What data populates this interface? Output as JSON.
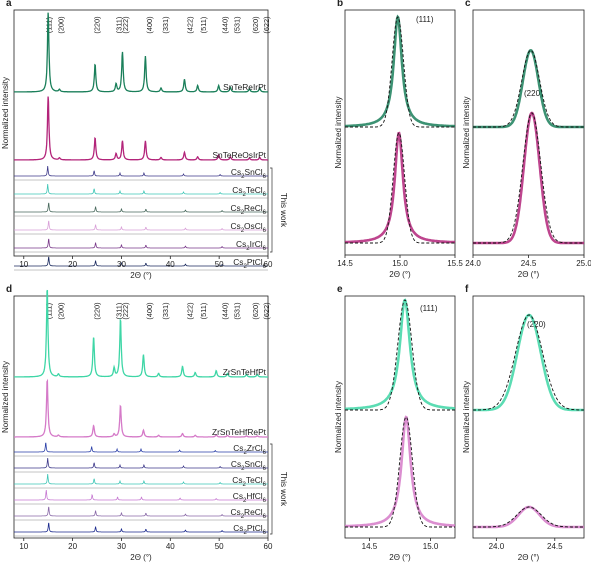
{
  "panels": {
    "a": "a",
    "b": "b",
    "c": "c",
    "d": "d",
    "e": "e",
    "f": "f"
  },
  "chart_data": [
    {
      "panel": "a",
      "type": "line",
      "xlabel": "2Θ (°)",
      "ylabel": "Normalized intensity",
      "xlim": [
        8,
        60
      ],
      "xticks": [
        "10",
        "20",
        "30",
        "40",
        "50",
        "60"
      ],
      "hkl": [
        {
          "label": "(111)",
          "x": 15.1
        },
        {
          "label": "(200)",
          "x": 17.5
        },
        {
          "label": "(220)",
          "x": 24.9
        },
        {
          "label": "(311)",
          "x": 29.4
        },
        {
          "label": "(222)",
          "x": 30.7
        },
        {
          "label": "(400)",
          "x": 35.6
        },
        {
          "label": "(331)",
          "x": 38.9
        },
        {
          "label": "(422)",
          "x": 43.9
        },
        {
          "label": "(511)",
          "x": 46.7
        },
        {
          "label": "(440)",
          "x": 51.1
        },
        {
          "label": "(531)",
          "x": 53.5
        },
        {
          "label": "(620)",
          "x": 57.3
        },
        {
          "label": "(622)",
          "x": 59.6
        }
      ],
      "series": [
        {
          "name": "SnTeReIrPt",
          "color": "#1a7f5a",
          "peaks": [
            [
              15.0,
              1.0
            ],
            [
              17.3,
              0.03
            ],
            [
              24.6,
              0.35
            ],
            [
              28.9,
              0.1
            ],
            [
              30.2,
              0.5
            ],
            [
              34.9,
              0.45
            ],
            [
              38.1,
              0.05
            ],
            [
              42.9,
              0.16
            ],
            [
              45.6,
              0.08
            ],
            [
              49.9,
              0.08
            ],
            [
              52.3,
              0.06
            ],
            [
              56.2,
              0.04
            ],
            [
              58.3,
              0.05
            ]
          ]
        },
        {
          "name": "SnTeReOsIrPt",
          "color": "#b3247a",
          "peaks": [
            [
              15.0,
              1.0
            ],
            [
              17.3,
              0.03
            ],
            [
              24.6,
              0.35
            ],
            [
              28.9,
              0.1
            ],
            [
              30.2,
              0.3
            ],
            [
              34.9,
              0.3
            ],
            [
              38.1,
              0.04
            ],
            [
              42.9,
              0.12
            ],
            [
              45.6,
              0.05
            ],
            [
              49.9,
              0.08
            ],
            [
              52.3,
              0.05
            ],
            [
              56.2,
              0.03
            ],
            [
              58.3,
              0.04
            ]
          ]
        },
        {
          "name": "Cs2SnCl6",
          "label": [
            "Cs",
            "2",
            "SnCl",
            "6"
          ],
          "color": "#3e3a8a",
          "peaks": [
            [
              14.9,
              1.0
            ],
            [
              24.4,
              0.55
            ],
            [
              29.7,
              0.3
            ],
            [
              34.6,
              0.3
            ],
            [
              42.7,
              0.2
            ],
            [
              50.2,
              0.15
            ]
          ]
        },
        {
          "name": "Cs2TeCl6",
          "label": [
            "Cs",
            "2",
            "TeCl",
            "6"
          ],
          "color": "#3ec6b6",
          "peaks": [
            [
              14.9,
              1.0
            ],
            [
              24.4,
              0.55
            ],
            [
              29.7,
              0.3
            ],
            [
              34.6,
              0.3
            ],
            [
              42.7,
              0.2
            ],
            [
              50.2,
              0.15
            ]
          ]
        },
        {
          "name": "Cs2ReCl6",
          "label": [
            "Cs",
            "2",
            "ReCl",
            "6"
          ],
          "color": "#4a6a5e",
          "peaks": [
            [
              15.1,
              1.0
            ],
            [
              24.7,
              0.55
            ],
            [
              30.0,
              0.3
            ],
            [
              35.0,
              0.3
            ],
            [
              43.1,
              0.2
            ],
            [
              50.6,
              0.15
            ]
          ]
        },
        {
          "name": "Cs2OsCl6",
          "label": [
            "Cs",
            "2",
            "OsCl",
            "6"
          ],
          "color": "#d9a0d8",
          "peaks": [
            [
              15.1,
              1.0
            ],
            [
              24.7,
              0.55
            ],
            [
              30.0,
              0.3
            ],
            [
              35.0,
              0.3
            ],
            [
              43.1,
              0.2
            ],
            [
              50.6,
              0.15
            ]
          ]
        },
        {
          "name": "Cs2IrCl6",
          "label": [
            "Cs",
            "2",
            "IrCl",
            "6"
          ],
          "color": "#7a3a8a",
          "peaks": [
            [
              15.1,
              1.0
            ],
            [
              24.7,
              0.55
            ],
            [
              30.0,
              0.3
            ],
            [
              35.0,
              0.3
            ],
            [
              43.1,
              0.2
            ],
            [
              50.6,
              0.15
            ]
          ]
        },
        {
          "name": "Cs2PtCl6",
          "label": [
            "Cs",
            "2",
            "PtCl",
            "6"
          ],
          "color": "#1b2a5e",
          "peaks": [
            [
              15.1,
              1.0
            ],
            [
              24.7,
              0.55
            ],
            [
              30.0,
              0.3
            ],
            [
              35.0,
              0.3
            ],
            [
              43.1,
              0.2
            ],
            [
              50.6,
              0.15
            ]
          ]
        }
      ],
      "bracket_label": "This work"
    },
    {
      "panel": "b",
      "type": "line",
      "xlabel": "2Θ (°)",
      "ylabel": "Normalized intensity",
      "xlim": [
        14.5,
        15.5
      ],
      "xticks": [
        "14.5",
        "15.0",
        "15.5"
      ],
      "annotation": "(111)",
      "series": [
        {
          "name": "SnTeReIrPt",
          "color": "#1a7f5a",
          "center": 14.98,
          "width": 0.045
        },
        {
          "name": "SnTeReOsIrPt",
          "color": "#b3247a",
          "center": 14.99,
          "width": 0.045
        }
      ]
    },
    {
      "panel": "c",
      "type": "line",
      "xlim": [
        24.0,
        25.0
      ],
      "xticks": [
        "24.0",
        "24.5",
        "25.0"
      ],
      "xlabel": "2Θ (°)",
      "ylabel": "Normalized intensity",
      "annotation": "(220)",
      "series": [
        {
          "name": "SnTeReIrPt",
          "color": "#1a7f5a",
          "center": 24.52,
          "width": 0.07,
          "height": 0.3
        },
        {
          "name": "SnTeReOsIrPt",
          "color": "#b3247a",
          "center": 24.53,
          "width": 0.07,
          "height": 0.45
        }
      ]
    },
    {
      "panel": "d",
      "type": "line",
      "xlabel": "2Θ (°)",
      "ylabel": "Normalized intensity",
      "xlim": [
        8,
        60
      ],
      "xticks": [
        "10",
        "20",
        "30",
        "40",
        "50",
        "60"
      ],
      "hkl": [
        {
          "label": "(111)",
          "x": 15.1
        },
        {
          "label": "(200)",
          "x": 17.5
        },
        {
          "label": "(220)",
          "x": 24.9
        },
        {
          "label": "(311)",
          "x": 29.4
        },
        {
          "label": "(222)",
          "x": 30.7
        },
        {
          "label": "(400)",
          "x": 35.6
        },
        {
          "label": "(331)",
          "x": 38.9
        },
        {
          "label": "(422)",
          "x": 43.9
        },
        {
          "label": "(511)",
          "x": 46.7
        },
        {
          "label": "(440)",
          "x": 51.1
        },
        {
          "label": "(531)",
          "x": 53.5
        },
        {
          "label": "(620)",
          "x": 57.3
        },
        {
          "label": "(622)",
          "x": 59.6
        }
      ],
      "series": [
        {
          "name": "ZrSnTeHfPt",
          "color": "#3ed6a6",
          "peaks": [
            [
              14.8,
              1.0
            ],
            [
              17.1,
              0.03
            ],
            [
              24.3,
              0.45
            ],
            [
              28.5,
              0.1
            ],
            [
              29.8,
              0.65
            ],
            [
              34.5,
              0.25
            ],
            [
              37.6,
              0.04
            ],
            [
              42.5,
              0.12
            ],
            [
              45.1,
              0.05
            ],
            [
              49.4,
              0.07
            ],
            [
              51.7,
              0.04
            ],
            [
              55.6,
              0.03
            ],
            [
              57.8,
              0.03
            ]
          ]
        },
        {
          "name": "ZrSnTeHfRePt",
          "color": "#d57ac8",
          "peaks": [
            [
              14.8,
              1.0
            ],
            [
              17.1,
              0.03
            ],
            [
              24.3,
              0.2
            ],
            [
              28.5,
              0.05
            ],
            [
              29.8,
              0.55
            ],
            [
              34.5,
              0.12
            ],
            [
              37.6,
              0.03
            ],
            [
              42.5,
              0.06
            ],
            [
              45.1,
              0.03
            ],
            [
              49.4,
              0.04
            ],
            [
              51.7,
              0.03
            ],
            [
              55.6,
              0.02
            ],
            [
              57.8,
              0.02
            ]
          ]
        },
        {
          "name": "Cs2ZrCl6",
          "label": [
            "Cs",
            "2",
            "ZrCl",
            "6"
          ],
          "color": "#2a3fa8",
          "peaks": [
            [
              14.5,
              1.0
            ],
            [
              23.9,
              0.55
            ],
            [
              29.1,
              0.3
            ],
            [
              34.0,
              0.3
            ],
            [
              41.9,
              0.2
            ],
            [
              49.2,
              0.15
            ]
          ]
        },
        {
          "name": "Cs2SnCl6",
          "label": [
            "Cs",
            "2",
            "SnCl",
            "6"
          ],
          "color": "#3e3a8a",
          "peaks": [
            [
              14.9,
              1.0
            ],
            [
              24.4,
              0.55
            ],
            [
              29.7,
              0.3
            ],
            [
              34.6,
              0.3
            ],
            [
              42.7,
              0.2
            ],
            [
              50.2,
              0.15
            ]
          ]
        },
        {
          "name": "Cs2TeCl6",
          "label": [
            "Cs",
            "2",
            "TeCl",
            "6"
          ],
          "color": "#3ec6b6",
          "peaks": [
            [
              14.9,
              1.0
            ],
            [
              24.4,
              0.55
            ],
            [
              29.7,
              0.3
            ],
            [
              34.6,
              0.3
            ],
            [
              42.7,
              0.2
            ],
            [
              50.2,
              0.15
            ]
          ]
        },
        {
          "name": "Cs2HfCl6",
          "label": [
            "Cs",
            "2",
            "HfCl",
            "6"
          ],
          "color": "#c77ad2",
          "peaks": [
            [
              14.6,
              1.0
            ],
            [
              24.0,
              0.55
            ],
            [
              29.2,
              0.3
            ],
            [
              34.1,
              0.3
            ],
            [
              42.0,
              0.2
            ],
            [
              49.4,
              0.15
            ]
          ]
        },
        {
          "name": "Cs2ReCl6",
          "label": [
            "Cs",
            "2",
            "ReCl",
            "6"
          ],
          "color": "#8a6aa8",
          "peaks": [
            [
              15.1,
              1.0
            ],
            [
              24.7,
              0.55
            ],
            [
              30.0,
              0.3
            ],
            [
              35.0,
              0.3
            ],
            [
              43.1,
              0.2
            ],
            [
              50.6,
              0.15
            ]
          ]
        },
        {
          "name": "Cs2PtCl6",
          "label": [
            "Cs",
            "2",
            "PtCl",
            "6"
          ],
          "color": "#1b2a8e",
          "peaks": [
            [
              15.1,
              1.0
            ],
            [
              24.7,
              0.55
            ],
            [
              30.0,
              0.3
            ],
            [
              35.0,
              0.3
            ],
            [
              43.1,
              0.2
            ],
            [
              50.6,
              0.15
            ]
          ]
        }
      ],
      "bracket_label": "This work"
    },
    {
      "panel": "e",
      "type": "line",
      "xlabel": "2Θ (°)",
      "ylabel": "Normalized intensity",
      "xlim": [
        14.3,
        15.2
      ],
      "xticks": [
        "14.5",
        "15.0"
      ],
      "annotation": "(111)",
      "series": [
        {
          "name": "ZrSnTeHfPt",
          "color": "#3ed6a6",
          "center": 14.79,
          "width": 0.05
        },
        {
          "name": "ZrSnTeHfRePt",
          "color": "#d57ac8",
          "center": 14.8,
          "width": 0.045
        }
      ]
    },
    {
      "panel": "f",
      "type": "line",
      "xlim": [
        23.8,
        24.75
      ],
      "xticks": [
        "24.0",
        "24.5"
      ],
      "xlabel": "2Θ (°)",
      "ylabel": "Normalized intensity",
      "annotation": "(220)",
      "series": [
        {
          "name": "ZrSnTeHfPt",
          "color": "#3ed6a6",
          "center": 24.28,
          "width": 0.1,
          "height": 0.75
        },
        {
          "name": "ZrSnTeHfRePt",
          "color": "#d57ac8",
          "center": 24.28,
          "width": 0.09,
          "height": 0.15
        }
      ]
    }
  ]
}
